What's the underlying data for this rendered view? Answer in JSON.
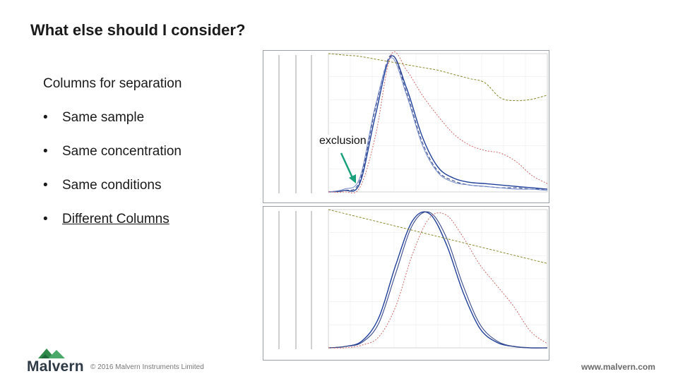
{
  "slide": {
    "title": "What else should I consider?",
    "subtitle": "Columns for separation",
    "bullets": [
      {
        "marker": "•",
        "text": "Same sample"
      },
      {
        "marker": "•",
        "text": "Same concentration"
      },
      {
        "marker": "•",
        "text": "Same conditions"
      },
      {
        "marker": "•",
        "text": "Different Columns"
      }
    ],
    "annotation": "exclusion"
  },
  "footer": {
    "brand": "Malvern",
    "copyright": "© 2016 Malvern Instruments Limited",
    "website": "www.malvern.com"
  },
  "colors": {
    "blue_trace": "#1f3f9a",
    "navy_trace": "#3a4a8a",
    "red_trace": "#d06a6a",
    "olive_trace": "#8a8a30",
    "arrow": "#1aa07a",
    "logo_green": "#2f8a4a"
  },
  "chart_data": [
    {
      "type": "line",
      "x": [
        8.5,
        9,
        9.5,
        10,
        10.5,
        11,
        11.5,
        12,
        12.5,
        13,
        13.5,
        14,
        14.5,
        15,
        15.5
      ],
      "xlim": [
        8.5,
        15.5
      ],
      "ylim": [
        0,
        100
      ],
      "series": [
        {
          "values": [
            0,
            1,
            6,
            55,
            98,
            75,
            40,
            18,
            10,
            7,
            6,
            5,
            4,
            3,
            2
          ]
        },
        {
          "values": [
            0,
            1,
            8,
            60,
            99,
            72,
            36,
            15,
            8,
            5,
            4,
            3,
            3,
            2,
            2
          ]
        },
        {
          "values": [
            0,
            2,
            10,
            62,
            97,
            70,
            34,
            14,
            7,
            5,
            4,
            3,
            2,
            2,
            1
          ]
        },
        {
          "values": [
            0,
            0,
            3,
            40,
            99,
            88,
            70,
            55,
            42,
            34,
            30,
            28,
            22,
            12,
            6
          ]
        },
        {
          "values": [
            100,
            99,
            98,
            96,
            94,
            92,
            90,
            88,
            85,
            82,
            79,
            68,
            66,
            67,
            70
          ]
        }
      ]
    },
    {
      "type": "line",
      "x": [
        15,
        15.5,
        16,
        16.5,
        17,
        17.5,
        18,
        18.5,
        19,
        19.5,
        20,
        20.5,
        21,
        21.5
      ],
      "xlim": [
        15,
        21.5
      ],
      "ylim": [
        0,
        100
      ],
      "series": [
        {
          "values": [
            0,
            1,
            5,
            22,
            60,
            92,
            97,
            75,
            40,
            14,
            4,
            1,
            0,
            0
          ]
        },
        {
          "values": [
            0,
            1,
            4,
            18,
            54,
            89,
            98,
            80,
            45,
            17,
            5,
            1,
            0,
            0
          ]
        },
        {
          "values": [
            0,
            0,
            2,
            8,
            30,
            68,
            94,
            96,
            80,
            60,
            45,
            30,
            12,
            3
          ]
        },
        {
          "values": [
            100,
            97,
            94,
            91,
            88,
            85,
            82,
            79,
            76,
            73,
            70,
            67,
            64,
            61
          ]
        }
      ]
    }
  ]
}
